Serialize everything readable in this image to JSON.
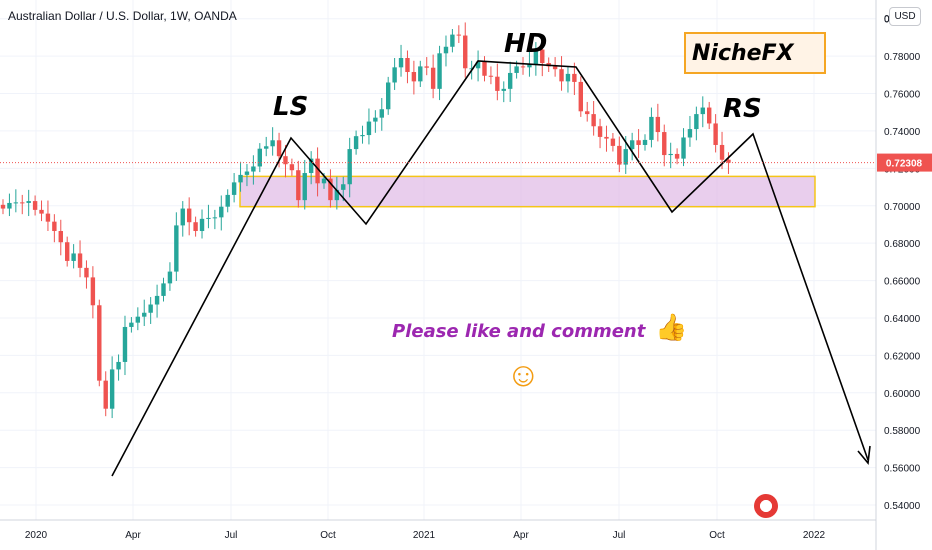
{
  "header": {
    "title": "Australian Dollar / U.S. Dollar, 1W, OANDA",
    "currency_button": "USD"
  },
  "annotations": {
    "ls": "LS",
    "hd": "HD",
    "rs": "RS",
    "brand": "NicheFX",
    "message": "Please like and comment"
  },
  "icons": {
    "thumb": "thumbs-up-icon",
    "smile": "smiley-icon",
    "flag": "us-flag-icon"
  },
  "colors": {
    "up": "#26a69a",
    "down": "#ef5350",
    "zone_fill": "#e1bee7",
    "zone_border": "#f5c518",
    "price_label": "#ef5350",
    "message": "#9c27b0",
    "brand_border": "#f5a623"
  },
  "chart_data": {
    "type": "candlestick",
    "title": "Australian Dollar / U.S. Dollar, 1W, OANDA",
    "x_ticks": [
      "2020",
      "Apr",
      "Jul",
      "Oct",
      "2021",
      "Apr",
      "Jul",
      "Oct",
      "2022"
    ],
    "y_ticks": [
      "0.80000",
      "0.78000",
      "0.76000",
      "0.74000",
      "0.72000",
      "0.70000",
      "0.68000",
      "0.66000",
      "0.64000",
      "0.62000",
      "0.60000",
      "0.58000",
      "0.56000",
      "0.54000"
    ],
    "ylim": [
      0.532,
      0.81
    ],
    "last_price": 0.72308,
    "last_price_label": "0.72308",
    "support_zone": [
      0.6995,
      0.7157
    ],
    "closes": [
      0.6985,
      0.7015,
      0.7018,
      0.7015,
      0.7025,
      0.6978,
      0.6958,
      0.6915,
      0.6865,
      0.6805,
      0.6705,
      0.6745,
      0.6668,
      0.6617,
      0.6468,
      0.6065,
      0.5915,
      0.6125,
      0.6165,
      0.6352,
      0.6375,
      0.6407,
      0.6428,
      0.6472,
      0.6518,
      0.6585,
      0.6648,
      0.6895,
      0.6985,
      0.6912,
      0.6865,
      0.693,
      0.6935,
      0.6938,
      0.6995,
      0.7058,
      0.7125,
      0.7165,
      0.7183,
      0.721,
      0.7305,
      0.7318,
      0.735,
      0.7265,
      0.7222,
      0.719,
      0.703,
      0.7175,
      0.7252,
      0.712,
      0.7145,
      0.703,
      0.7085,
      0.7115,
      0.7303,
      0.7372,
      0.7378,
      0.745,
      0.7471,
      0.7516,
      0.7659,
      0.774,
      0.779,
      0.7715,
      0.7665,
      0.7745,
      0.7738,
      0.7625,
      0.7815,
      0.785,
      0.7915,
      0.791,
      0.7735,
      0.7735,
      0.777,
      0.7695,
      0.769,
      0.7614,
      0.7625,
      0.771,
      0.7745,
      0.774,
      0.7755,
      0.7835,
      0.7763,
      0.7745,
      0.773,
      0.7665,
      0.7705,
      0.7662,
      0.7505,
      0.749,
      0.7425,
      0.7368,
      0.7359,
      0.732,
      0.722,
      0.7303,
      0.735,
      0.7325,
      0.7352,
      0.7475,
      0.7394,
      0.7271,
      0.7277,
      0.7252,
      0.7365,
      0.741,
      0.749,
      0.7525,
      0.744,
      0.7325,
      0.7246,
      0.723
    ]
  }
}
